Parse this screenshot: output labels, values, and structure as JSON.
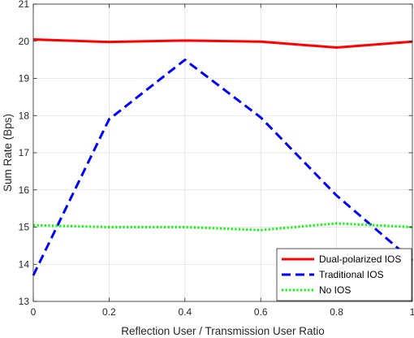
{
  "chart_data": {
    "type": "line",
    "xlabel": "Reflection User / Transmission User Ratio",
    "ylabel": "Sum Rate (Bps)",
    "xlim": [
      0,
      1
    ],
    "ylim": [
      13,
      21
    ],
    "xticks": [
      0,
      0.2,
      0.4,
      0.6,
      0.8,
      1
    ],
    "xtick_labels": [
      "0",
      "0.2",
      "0.4",
      "0.6",
      "0.8",
      "1"
    ],
    "yticks": [
      13,
      14,
      15,
      16,
      17,
      18,
      19,
      20,
      21
    ],
    "ytick_labels": [
      "13",
      "14",
      "15",
      "16",
      "17",
      "18",
      "19",
      "20",
      "21"
    ],
    "grid": true,
    "legend_position": "bottom-right",
    "x": [
      0,
      0.2,
      0.4,
      0.6,
      0.8,
      1
    ],
    "series": [
      {
        "name": "Dual-polarized IOS",
        "values": [
          20.05,
          19.98,
          20.02,
          19.99,
          19.83,
          19.99
        ],
        "color": "#ff0000",
        "style": "solid"
      },
      {
        "name": "Traditional IOS",
        "values": [
          13.7,
          17.9,
          19.5,
          17.95,
          15.85,
          14.1
        ],
        "color": "#0000ff",
        "style": "dashed"
      },
      {
        "name": "No IOS",
        "values": [
          15.05,
          15.0,
          15.0,
          14.92,
          15.1,
          15.0
        ],
        "color": "#00ff00",
        "style": "dotted"
      }
    ]
  }
}
